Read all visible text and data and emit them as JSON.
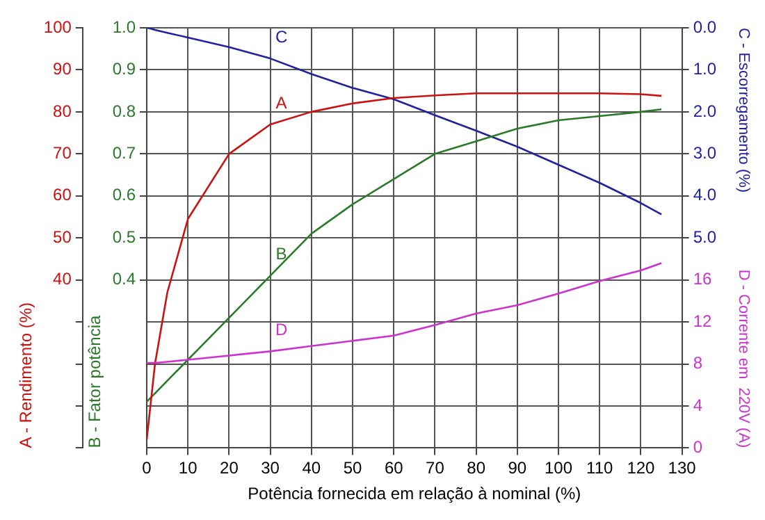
{
  "chart_data": [
    {
      "type": "line",
      "xlabel": "Potência fornecida em relação à nominal (%)",
      "xlim": [
        0,
        130
      ],
      "xticks": [
        0,
        10,
        20,
        30,
        40,
        50,
        60,
        70,
        80,
        90,
        100,
        110,
        120,
        130
      ],
      "ylabel": "A - Rendimento (%)",
      "ylim": [
        0,
        100
      ],
      "yticks": [
        {
          "value": 0,
          "label": null
        },
        {
          "value": 10,
          "label": null
        },
        {
          "value": 20,
          "label": null
        },
        {
          "value": 30,
          "label": null
        },
        40,
        50,
        60,
        70,
        80,
        90,
        100
      ],
      "y2label": "B - Fator potência",
      "y2lim": [
        0,
        1
      ],
      "y2ticks": [
        0.4,
        0.5,
        0.6,
        0.7,
        0.8,
        0.9,
        {
          "value": 1,
          "label": "1.0"
        }
      ],
      "y3label": "C - Escorregamento (%)",
      "y3lim": [
        10,
        0
      ],
      "y3ticks": [
        {
          "value": 0,
          "label": "0.0"
        },
        {
          "value": 1,
          "label": "1.0"
        },
        {
          "value": 2,
          "label": "2.0"
        },
        {
          "value": 3,
          "label": "3.0"
        },
        {
          "value": 4,
          "label": "4.0"
        },
        {
          "value": 5,
          "label": "5.0"
        }
      ],
      "grid": true,
      "legend": false,
      "marker": "none",
      "line_style": "solid",
      "x": [
        0,
        1,
        2,
        5,
        10,
        20,
        30,
        40,
        50,
        60,
        70,
        80,
        90,
        100,
        110,
        120,
        125
      ],
      "series": [
        {
          "name": "A",
          "color": "#cc1111",
          "values": [
            2,
            11,
            20,
            37,
            54.5,
            70,
            77,
            80,
            82,
            83.3,
            83.9,
            84.4,
            84.4,
            84.4,
            84.4,
            84.2,
            83.8
          ]
        },
        {
          "name": "B",
          "color": "#2a7a2a",
          "axis": "y2",
          "values": [
            0.11,
            0.12,
            0.13,
            0.16,
            0.21,
            0.31,
            0.41,
            0.51,
            0.58,
            0.64,
            0.7,
            0.73,
            0.76,
            0.78,
            0.79,
            0.8,
            0.806
          ]
        },
        {
          "name": "C",
          "color": "#2222a0",
          "axis": "y3",
          "values": [
            0,
            0.02,
            0.05,
            0.12,
            0.23,
            0.46,
            0.73,
            1.1,
            1.43,
            1.7,
            2.08,
            2.45,
            2.83,
            3.26,
            3.69,
            4.17,
            4.44
          ]
        }
      ]
    },
    {
      "type": "line",
      "xlim": [
        0,
        130
      ],
      "ylabel": "D - Corrente em  220V (A)",
      "ylim": [
        0,
        40
      ],
      "yticks": [
        0,
        4,
        8,
        12,
        16
      ],
      "tick_labels": "y",
      "legend": false,
      "marker": "none",
      "line_style": "solid",
      "x": [
        0,
        1,
        2,
        5,
        10,
        20,
        30,
        40,
        50,
        60,
        70,
        80,
        90,
        100,
        110,
        120,
        125
      ],
      "series": [
        {
          "name": "D",
          "color": "#cc33cc",
          "values": [
            8.1,
            8.1,
            8.1,
            8.2,
            8.4,
            8.8,
            9.2,
            9.7,
            10.2,
            10.7,
            11.7,
            12.8,
            13.6,
            14.7,
            15.9,
            16.9,
            17.6
          ]
        }
      ]
    }
  ]
}
